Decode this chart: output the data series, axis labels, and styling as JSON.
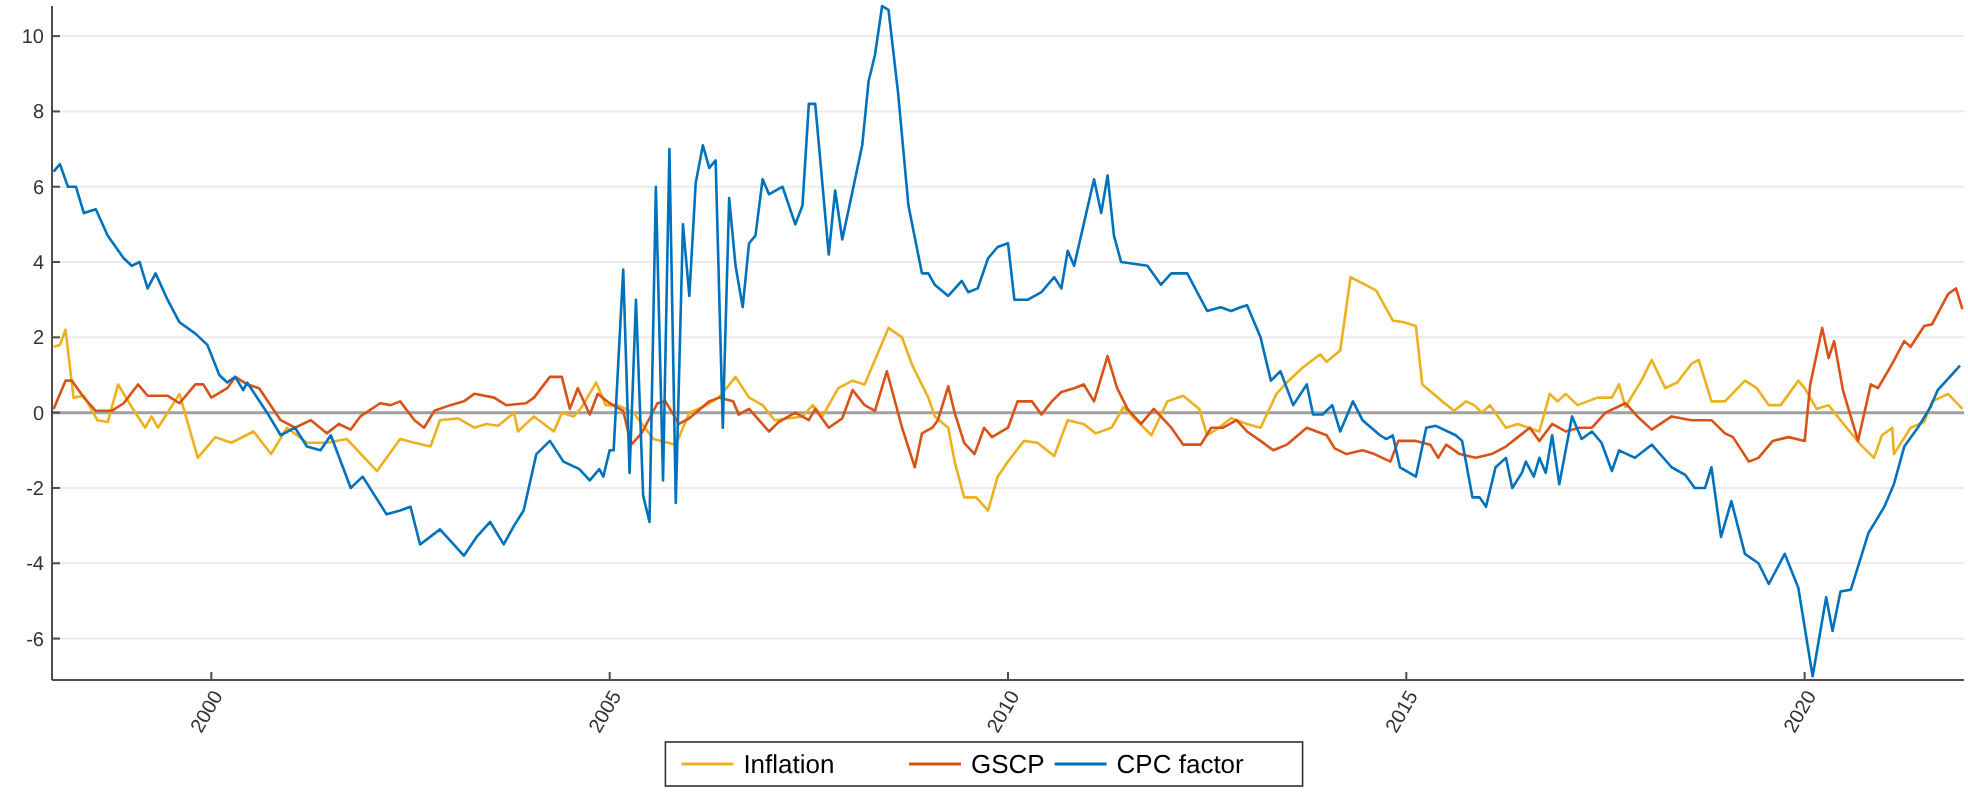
{
  "chart_data": {
    "type": "line",
    "xlim": [
      1998,
      2022
    ],
    "ylim": [
      -7.1,
      10.8
    ],
    "xticks": [
      2000,
      2005,
      2010,
      2015,
      2020
    ],
    "yticks": [
      -6,
      -4,
      -2,
      0,
      2,
      4,
      6,
      8,
      10
    ],
    "grid": "y",
    "legend": "bottom",
    "line_style": "solid",
    "marker": "none",
    "ref_lines": [
      {
        "axis": "y",
        "value": 0,
        "color": "#a0a0a0"
      }
    ],
    "series": [
      {
        "name": "Inflation",
        "color": "#edb120",
        "x": [
          1998.02,
          1998.1,
          1998.17,
          1998.27,
          1998.4,
          1998.57,
          1998.7,
          1998.83,
          1999.0,
          1999.17,
          1999.25,
          1999.33,
          1999.6,
          1999.83,
          2000.05,
          2000.25,
          2000.53,
          2000.75,
          2000.95,
          2001.2,
          2001.45,
          2001.7,
          2002.08,
          2002.37,
          2002.55,
          2002.75,
          2002.87,
          2003.1,
          2003.3,
          2003.45,
          2003.6,
          2003.8,
          2003.85,
          2004.05,
          2004.3,
          2004.4,
          2004.55,
          2004.65,
          2004.83,
          2004.95,
          2005.1,
          2005.3,
          2005.55,
          2005.83,
          2006.0,
          2006.17,
          2006.37,
          2006.58,
          2006.75,
          2006.92,
          2007.07,
          2007.42,
          2007.55,
          2007.67,
          2007.87,
          2008.05,
          2008.2,
          2008.33,
          2008.5,
          2008.67,
          2008.8,
          2009.0,
          2009.08,
          2009.25,
          2009.33,
          2009.45,
          2009.6,
          2009.75,
          2009.87,
          2010.0,
          2010.2,
          2010.37,
          2010.58,
          2010.75,
          2010.95,
          2011.1,
          2011.3,
          2011.45,
          2011.8,
          2012.0,
          2012.2,
          2012.4,
          2012.5,
          2012.65,
          2012.8,
          2013.0,
          2013.17,
          2013.37,
          2013.5,
          2013.7,
          2013.92,
          2014.0,
          2014.17,
          2014.3,
          2014.62,
          2014.83,
          2014.97,
          2015.12,
          2015.2,
          2015.45,
          2015.6,
          2015.75,
          2015.85,
          2015.95,
          2016.05,
          2016.25,
          2016.4,
          2016.67,
          2016.8,
          2016.9,
          2017.0,
          2017.15,
          2017.4,
          2017.58,
          2017.67,
          2017.75,
          2017.95,
          2018.08,
          2018.25,
          2018.4,
          2018.58,
          2018.67,
          2018.83,
          2019.0,
          2019.25,
          2019.4,
          2019.55,
          2019.7,
          2019.92,
          2020.0,
          2020.15,
          2020.3,
          2020.45,
          2020.7,
          2020.87,
          2020.97,
          2021.1,
          2021.12,
          2021.33,
          2021.5,
          2021.6,
          2021.8,
          2021.98
        ],
        "values": [
          1.75,
          1.8,
          2.2,
          0.4,
          0.45,
          -0.2,
          -0.25,
          0.75,
          0.15,
          -0.4,
          -0.1,
          -0.4,
          0.5,
          -1.2,
          -0.65,
          -0.8,
          -0.5,
          -1.1,
          -0.4,
          -0.8,
          -0.8,
          -0.7,
          -1.55,
          -0.7,
          -0.8,
          -0.9,
          -0.2,
          -0.15,
          -0.4,
          -0.3,
          -0.35,
          0,
          -0.5,
          -0.1,
          -0.5,
          0,
          -0.1,
          0.15,
          0.8,
          0.2,
          0.2,
          0,
          -0.7,
          -0.85,
          0,
          0.15,
          0.4,
          0.95,
          0.4,
          0.2,
          -0.2,
          -0.1,
          0.2,
          -0.1,
          0.65,
          0.85,
          0.75,
          1.4,
          2.25,
          2.0,
          1.25,
          0.4,
          -0.1,
          -0.4,
          -1.3,
          -2.25,
          -2.25,
          -2.6,
          -1.7,
          -1.3,
          -0.75,
          -0.8,
          -1.15,
          -0.2,
          -0.3,
          -0.55,
          -0.4,
          0.15,
          -0.6,
          0.3,
          0.45,
          0.1,
          -0.6,
          -0.4,
          -0.15,
          -0.3,
          -0.4,
          0.5,
          0.8,
          1.2,
          1.55,
          1.35,
          1.65,
          3.6,
          3.25,
          2.45,
          2.4,
          2.3,
          0.75,
          0.3,
          0.05,
          0.3,
          0.2,
          0,
          0.2,
          -0.4,
          -0.3,
          -0.5,
          0.5,
          0.3,
          0.5,
          0.2,
          0.4,
          0.4,
          0.75,
          0.15,
          0.85,
          1.4,
          0.65,
          0.8,
          1.3,
          1.4,
          0.3,
          0.3,
          0.85,
          0.65,
          0.2,
          0.2,
          0.85,
          0.65,
          0.1,
          0.2,
          -0.2,
          -0.85,
          -1.2,
          -0.6,
          -0.4,
          -1.1,
          -0.4,
          -0.25,
          0.3,
          0.5,
          0.1
        ]
      },
      {
        "name": "GSCP",
        "color": "#d95319",
        "x": [
          1998.02,
          1998.17,
          1998.25,
          1998.4,
          1998.55,
          1998.75,
          1998.9,
          1999.08,
          1999.2,
          1999.45,
          1999.6,
          1999.8,
          1999.9,
          2000.0,
          2000.2,
          2000.3,
          2000.45,
          2000.6,
          2000.87,
          2001.05,
          2001.25,
          2001.45,
          2001.6,
          2001.75,
          2001.87,
          2002.12,
          2002.25,
          2002.37,
          2002.55,
          2002.67,
          2002.8,
          2003.0,
          2003.17,
          2003.3,
          2003.55,
          2003.7,
          2003.95,
          2004.05,
          2004.25,
          2004.4,
          2004.5,
          2004.6,
          2004.75,
          2004.85,
          2005.0,
          2005.17,
          2005.27,
          2005.4,
          2005.6,
          2005.7,
          2005.87,
          2006.0,
          2006.25,
          2006.37,
          2006.55,
          2006.62,
          2006.75,
          2007.0,
          2007.12,
          2007.33,
          2007.5,
          2007.58,
          2007.75,
          2007.92,
          2008.05,
          2008.2,
          2008.33,
          2008.48,
          2008.67,
          2008.83,
          2008.92,
          2009.05,
          2009.12,
          2009.25,
          2009.33,
          2009.45,
          2009.58,
          2009.7,
          2009.8,
          2010.0,
          2010.12,
          2010.3,
          2010.42,
          2010.55,
          2010.67,
          2010.83,
          2010.95,
          2011.08,
          2011.25,
          2011.37,
          2011.5,
          2011.67,
          2011.83,
          2012.05,
          2012.2,
          2012.42,
          2012.55,
          2012.7,
          2012.87,
          2013.0,
          2013.17,
          2013.33,
          2013.5,
          2013.75,
          2014.0,
          2014.1,
          2014.25,
          2014.45,
          2014.6,
          2014.8,
          2014.9,
          2015.12,
          2015.3,
          2015.4,
          2015.5,
          2015.67,
          2015.87,
          2016.07,
          2016.25,
          2016.4,
          2016.55,
          2016.67,
          2016.83,
          2017.0,
          2017.17,
          2017.33,
          2017.5,
          2017.75,
          2017.9,
          2018.08,
          2018.33,
          2018.58,
          2018.83,
          2019.0,
          2019.1,
          2019.3,
          2019.42,
          2019.6,
          2019.8,
          2020.0,
          2020.07,
          2020.22,
          2020.3,
          2020.37,
          2020.48,
          2020.67,
          2020.83,
          2020.92,
          2021.1,
          2021.25,
          2021.33,
          2021.5,
          2021.6,
          2021.8,
          2021.9,
          2021.98
        ],
        "values": [
          0.1,
          0.85,
          0.85,
          0.4,
          0.05,
          0.05,
          0.25,
          0.75,
          0.45,
          0.45,
          0.25,
          0.75,
          0.75,
          0.4,
          0.65,
          0.95,
          0.75,
          0.65,
          -0.2,
          -0.4,
          -0.2,
          -0.55,
          -0.3,
          -0.45,
          -0.1,
          0.25,
          0.2,
          0.3,
          -0.2,
          -0.4,
          0.05,
          0.2,
          0.3,
          0.5,
          0.4,
          0.2,
          0.25,
          0.4,
          0.95,
          0.95,
          0.1,
          0.65,
          -0.05,
          0.5,
          0.25,
          0.05,
          -0.85,
          -0.55,
          0.25,
          0.3,
          -0.3,
          -0.15,
          0.3,
          0.4,
          0.3,
          -0.05,
          0.1,
          -0.5,
          -0.25,
          0,
          -0.2,
          0.1,
          -0.4,
          -0.15,
          0.6,
          0.2,
          0.05,
          1.1,
          -0.4,
          -1.45,
          -0.55,
          -0.4,
          -0.2,
          0.7,
          0,
          -0.8,
          -1.1,
          -0.4,
          -0.65,
          -0.4,
          0.3,
          0.3,
          -0.05,
          0.3,
          0.55,
          0.65,
          0.75,
          0.3,
          1.5,
          0.65,
          0.1,
          -0.3,
          0.1,
          -0.4,
          -0.85,
          -0.85,
          -0.4,
          -0.4,
          -0.2,
          -0.5,
          -0.75,
          -1.0,
          -0.85,
          -0.4,
          -0.6,
          -0.95,
          -1.1,
          -1.0,
          -1.1,
          -1.3,
          -0.75,
          -0.75,
          -0.85,
          -1.2,
          -0.85,
          -1.1,
          -1.2,
          -1.1,
          -0.9,
          -0.65,
          -0.4,
          -0.75,
          -0.3,
          -0.5,
          -0.4,
          -0.4,
          0,
          0.25,
          -0.1,
          -0.45,
          -0.1,
          -0.2,
          -0.2,
          -0.55,
          -0.65,
          -1.3,
          -1.2,
          -0.75,
          -0.65,
          -0.75,
          0.75,
          2.25,
          1.45,
          1.9,
          0.6,
          -0.75,
          0.75,
          0.65,
          1.3,
          1.9,
          1.75,
          2.3,
          2.35,
          3.15,
          3.3,
          2.75
        ]
      },
      {
        "name": "CPC factor",
        "color": "#0072bd",
        "x": [
          1998.02,
          1998.1,
          1998.2,
          1998.3,
          1998.4,
          1998.55,
          1998.7,
          1998.9,
          1999.0,
          1999.1,
          1999.2,
          1999.3,
          1999.45,
          1999.6,
          1999.8,
          1999.95,
          2000.1,
          2000.2,
          2000.3,
          2000.4,
          2000.45,
          2000.7,
          2000.87,
          2001.05,
          2001.2,
          2001.37,
          2001.5,
          2001.75,
          2001.9,
          2002.2,
          2002.37,
          2002.5,
          2002.62,
          2002.87,
          2003.17,
          2003.33,
          2003.5,
          2003.67,
          2003.8,
          2003.92,
          2004.08,
          2004.25,
          2004.42,
          2004.62,
          2004.75,
          2004.87,
          2004.92,
          2005.0,
          2005.05,
          2005.17,
          2005.25,
          2005.33,
          2005.42,
          2005.5,
          2005.58,
          2005.67,
          2005.75,
          2005.83,
          2005.92,
          2006.0,
          2006.08,
          2006.17,
          2006.25,
          2006.33,
          2006.42,
          2006.5,
          2006.58,
          2006.67,
          2006.75,
          2006.83,
          2006.92,
          2007.0,
          2007.17,
          2007.33,
          2007.42,
          2007.5,
          2007.58,
          2007.75,
          2007.83,
          2007.92,
          2008.17,
          2008.25,
          2008.33,
          2008.42,
          2008.5,
          2008.62,
          2008.75,
          2008.92,
          2009.0,
          2009.08,
          2009.25,
          2009.42,
          2009.5,
          2009.62,
          2009.75,
          2009.87,
          2010.0,
          2010.08,
          2010.25,
          2010.42,
          2010.58,
          2010.67,
          2010.75,
          2010.83,
          2011.08,
          2011.17,
          2011.25,
          2011.33,
          2011.42,
          2011.75,
          2011.92,
          2012.05,
          2012.25,
          2012.5,
          2012.67,
          2012.8,
          2012.92,
          2013.0,
          2013.17,
          2013.3,
          2013.42,
          2013.58,
          2013.75,
          2013.83,
          2013.95,
          2014.07,
          2014.17,
          2014.33,
          2014.45,
          2014.67,
          2014.75,
          2014.83,
          2014.92,
          2015.12,
          2015.25,
          2015.37,
          2015.62,
          2015.7,
          2015.83,
          2015.92,
          2016.0,
          2016.12,
          2016.25,
          2016.33,
          2016.45,
          2016.5,
          2016.6,
          2016.67,
          2016.75,
          2016.83,
          2016.92,
          2017.08,
          2017.2,
          2017.33,
          2017.45,
          2017.58,
          2017.67,
          2017.87,
          2018.08,
          2018.33,
          2018.5,
          2018.62,
          2018.75,
          2018.83,
          2018.95,
          2019.08,
          2019.25,
          2019.42,
          2019.55,
          2019.75,
          2019.92,
          2020.1,
          2020.27,
          2020.35,
          2020.45,
          2020.58,
          2020.8,
          2021.0,
          2021.12,
          2021.25,
          2021.42,
          2021.58,
          2021.67,
          2021.95
        ],
        "values": [
          6.4,
          6.6,
          6.0,
          6.0,
          5.3,
          5.4,
          4.7,
          4.1,
          3.9,
          4.0,
          3.3,
          3.7,
          3.0,
          2.4,
          2.1,
          1.8,
          1.0,
          0.8,
          0.95,
          0.6,
          0.8,
          0,
          -0.6,
          -0.4,
          -0.9,
          -1.0,
          -0.6,
          -2.0,
          -1.7,
          -2.7,
          -2.6,
          -2.5,
          -3.5,
          -3.1,
          -3.8,
          -3.3,
          -2.9,
          -3.5,
          -3.0,
          -2.6,
          -1.1,
          -0.75,
          -1.3,
          -1.5,
          -1.8,
          -1.5,
          -1.7,
          -1.0,
          -1.0,
          3.8,
          -1.6,
          3.0,
          -2.2,
          -2.9,
          6.0,
          -1.8,
          7.0,
          -2.4,
          5.0,
          3.1,
          6.1,
          7.1,
          6.5,
          6.7,
          -0.4,
          5.7,
          3.9,
          2.8,
          4.5,
          4.7,
          6.2,
          5.8,
          6.0,
          5.0,
          5.5,
          8.2,
          8.2,
          4.2,
          5.9,
          4.6,
          7.1,
          8.8,
          9.5,
          10.8,
          10.7,
          8.5,
          5.5,
          3.7,
          3.7,
          3.4,
          3.1,
          3.5,
          3.2,
          3.3,
          4.1,
          4.4,
          4.5,
          3.0,
          3.0,
          3.2,
          3.6,
          3.3,
          4.3,
          3.9,
          6.2,
          5.3,
          6.3,
          4.7,
          4.0,
          3.9,
          3.4,
          3.7,
          3.7,
          2.7,
          2.8,
          2.7,
          2.8,
          2.85,
          2.0,
          0.85,
          1.1,
          0.2,
          0.75,
          -0.05,
          -0.05,
          0.2,
          -0.5,
          0.3,
          -0.2,
          -0.6,
          -0.7,
          -0.6,
          -1.45,
          -1.7,
          -0.4,
          -0.35,
          -0.6,
          -0.75,
          -2.25,
          -2.25,
          -2.5,
          -1.45,
          -1.2,
          -2.0,
          -1.6,
          -1.3,
          -1.7,
          -1.2,
          -1.6,
          -0.6,
          -1.9,
          -0.1,
          -0.7,
          -0.5,
          -0.8,
          -1.55,
          -1.0,
          -1.2,
          -0.85,
          -1.45,
          -1.65,
          -2.0,
          -2.0,
          -1.45,
          -3.3,
          -2.35,
          -3.75,
          -4.0,
          -4.55,
          -3.75,
          -4.65,
          -7.0,
          -4.9,
          -5.8,
          -4.75,
          -4.7,
          -3.2,
          -2.5,
          -1.9,
          -0.9,
          -0.4,
          0.15,
          0.6,
          1.25
        ]
      }
    ]
  }
}
